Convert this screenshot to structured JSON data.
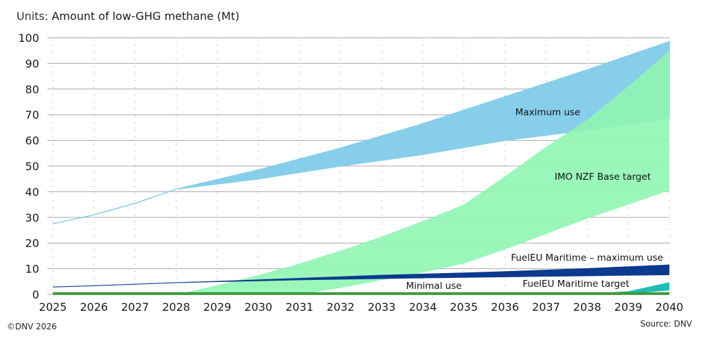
{
  "chart_data": {
    "type": "area",
    "title_prefix": "Units:",
    "title": "Amount of low-GHG methane (Mt)",
    "xlim": [
      2025,
      2040
    ],
    "ylim": [
      0,
      100
    ],
    "x_ticks": [
      "2025",
      "2026",
      "2027",
      "2028",
      "2029",
      "2030",
      "2031",
      "2032",
      "2033",
      "2034",
      "2035",
      "2036",
      "2037",
      "2038",
      "2039",
      "2040"
    ],
    "y_ticks": [
      "0",
      "10",
      "20",
      "30",
      "40",
      "50",
      "60",
      "70",
      "80",
      "90",
      "100"
    ],
    "grid": {
      "horizontal": "solid",
      "vertical": "dotted"
    },
    "series": [
      {
        "name": "Maximum use",
        "color": "#87ceeb",
        "upper": [
          [
            2025,
            27.5
          ],
          [
            2026,
            31
          ],
          [
            2027,
            35.5
          ],
          [
            2028,
            41
          ],
          [
            2030,
            48.5
          ],
          [
            2032,
            57
          ],
          [
            2034,
            66.5
          ],
          [
            2036,
            77
          ],
          [
            2038,
            87.5
          ],
          [
            2040,
            98.5
          ]
        ],
        "lower": [
          [
            2025,
            27.5
          ],
          [
            2026,
            31
          ],
          [
            2027,
            35.5
          ],
          [
            2028,
            41
          ],
          [
            2030,
            45
          ],
          [
            2032,
            50
          ],
          [
            2034,
            54.5
          ],
          [
            2036,
            60
          ],
          [
            2038,
            64
          ],
          [
            2040,
            68.5
          ]
        ]
      },
      {
        "name": "IMO NZF Base target",
        "color": "#90f5b3",
        "upper": [
          [
            2028,
            0
          ],
          [
            2029,
            3.5
          ],
          [
            2030,
            7.5
          ],
          [
            2031,
            12
          ],
          [
            2032,
            17
          ],
          [
            2033,
            22.5
          ],
          [
            2034,
            28.5
          ],
          [
            2035,
            35
          ],
          [
            2036,
            46
          ],
          [
            2037,
            57.5
          ],
          [
            2038,
            68
          ],
          [
            2039,
            81
          ],
          [
            2040,
            95
          ]
        ],
        "lower": [
          [
            2028,
            0
          ],
          [
            2031,
            0
          ],
          [
            2032,
            2.5
          ],
          [
            2033,
            5.5
          ],
          [
            2034,
            8.5
          ],
          [
            2035,
            12
          ],
          [
            2036,
            17.5
          ],
          [
            2037,
            23.5
          ],
          [
            2038,
            29.5
          ],
          [
            2039,
            35
          ],
          [
            2040,
            40.5
          ]
        ]
      },
      {
        "name": "FuelEU Maritime – maximum use",
        "color": "#0b3a8f",
        "upper": [
          [
            2025,
            3
          ],
          [
            2026,
            3.5
          ],
          [
            2027,
            4.1
          ],
          [
            2028,
            4.7
          ],
          [
            2029,
            5.2
          ],
          [
            2031,
            6.4
          ],
          [
            2033,
            7.6
          ],
          [
            2035,
            8.5
          ],
          [
            2036,
            9
          ],
          [
            2038,
            10.2
          ],
          [
            2040,
            11.6
          ]
        ],
        "lower": [
          [
            2025,
            2.7
          ],
          [
            2026,
            3.2
          ],
          [
            2027,
            3.8
          ],
          [
            2028,
            4.4
          ],
          [
            2029,
            4.8
          ],
          [
            2031,
            5.5
          ],
          [
            2033,
            6
          ],
          [
            2035,
            6.5
          ],
          [
            2036,
            6.7
          ],
          [
            2038,
            7.1
          ],
          [
            2040,
            7.5
          ]
        ]
      },
      {
        "name": "FuelEU Maritime target",
        "color": "#20bdb3",
        "upper": [
          [
            2038,
            0.3
          ],
          [
            2039,
            1.2
          ],
          [
            2040,
            4.7
          ]
        ],
        "lower": [
          [
            2038,
            0.3
          ],
          [
            2039,
            0.3
          ],
          [
            2040,
            1.5
          ]
        ]
      },
      {
        "name": "Minimal use",
        "color": "#3d9a3d",
        "type": "line",
        "values": [
          [
            2025,
            0.3
          ],
          [
            2040,
            0.3
          ]
        ]
      }
    ]
  },
  "footer": {
    "copyright": "©DNV 2026",
    "source": "Source: DNV"
  }
}
